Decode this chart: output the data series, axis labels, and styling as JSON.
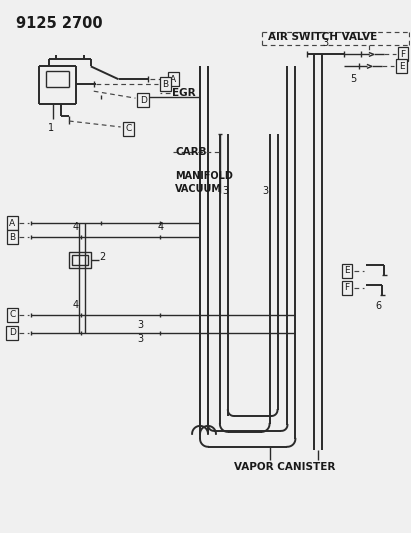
{
  "title": "9125 2700",
  "bg_color": "#f0f0f0",
  "line_color": "#2a2a2a",
  "text_color": "#1a1a1a",
  "dashed_color": "#444444",
  "labels": {
    "air_switch_valve": "AIR SWITCH VALVE",
    "egr": "EGR",
    "carb": "CARB",
    "manifold_vacuum_1": "MANIFOLD",
    "manifold_vacuum_2": "VACUUM",
    "vapor_canister": "VAPOR CANISTER"
  }
}
